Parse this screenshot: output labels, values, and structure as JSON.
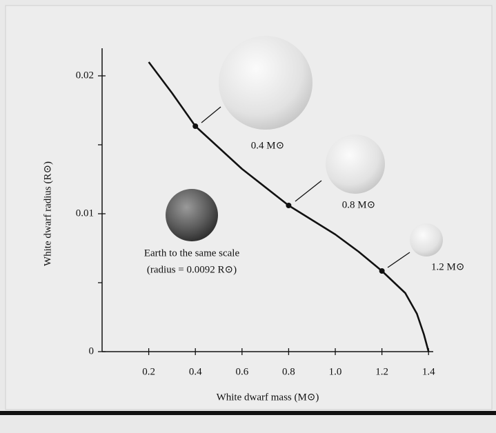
{
  "chart_data": {
    "type": "line",
    "xlabel": "White dwarf mass (M⊙)",
    "ylabel": "White dwarf radius (R⊙)",
    "xlim": [
      0,
      1.42
    ],
    "ylim": [
      0,
      0.022
    ],
    "xticks": [
      0.2,
      0.4,
      0.6,
      0.8,
      {
        "value": 1,
        "label": "1.0"
      },
      1.2,
      1.4
    ],
    "yticks": [
      0,
      0.01,
      0.02
    ],
    "minor_yticks": [
      0.005,
      0.015
    ],
    "series": [
      {
        "color": "#111111",
        "x": [
          0.2,
          0.3,
          0.4,
          0.6,
          0.8,
          1.0,
          1.1,
          1.2,
          1.3,
          1.35,
          1.38,
          1.4
        ],
        "values": [
          0.021,
          0.01875,
          0.01635,
          0.01325,
          0.0106,
          0.0085,
          0.00725,
          0.00585,
          0.00425,
          0.00275,
          0.00125,
          0
        ]
      },
      {
        "color": "#111111",
        "marker": "dot",
        "x": [
          0.4,
          0.8,
          1.2
        ],
        "values": [
          0.01635,
          0.0106,
          0.00585
        ]
      }
    ],
    "annotations": [
      {
        "text": "0.4 M⊙"
      },
      {
        "text": "0.8 M⊙"
      },
      {
        "text": "1.2 M⊙"
      },
      {
        "text": "Earth to the same scale"
      },
      {
        "text": "(radius = 0.0092 R⊙)"
      }
    ]
  }
}
